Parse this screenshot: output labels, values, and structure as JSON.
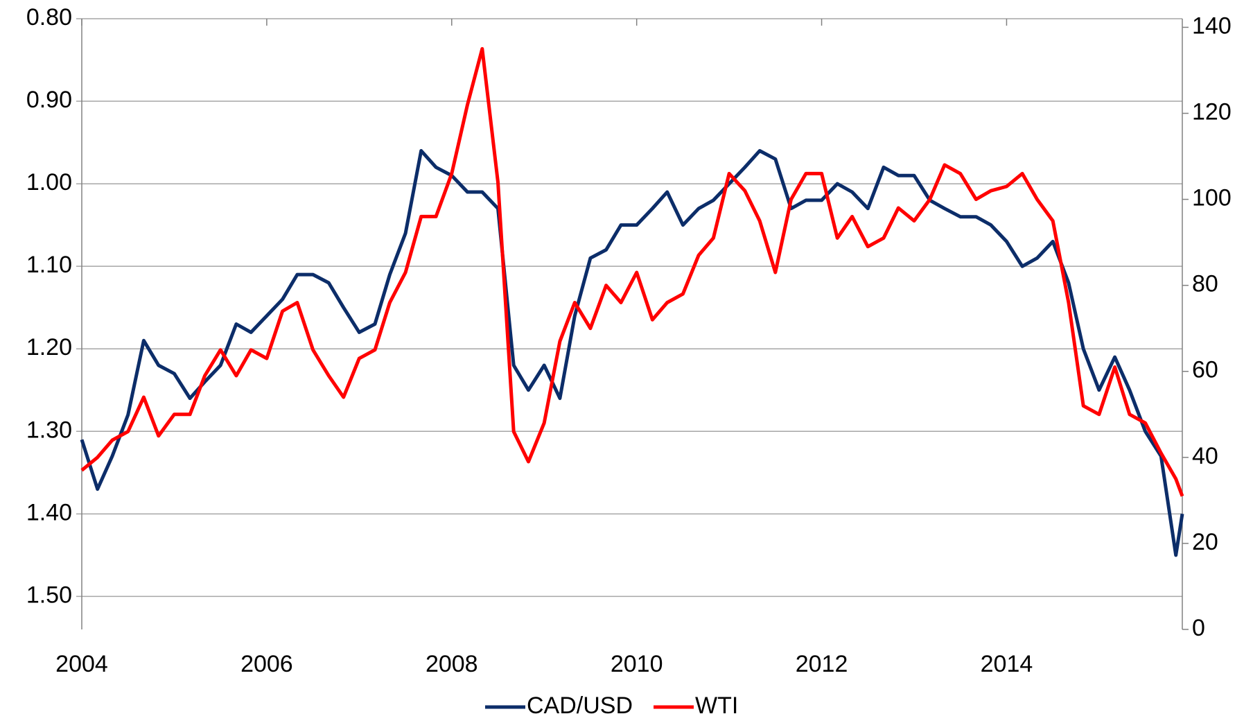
{
  "chart_data": {
    "type": "line",
    "x": [
      2004,
      2004.17,
      2004.33,
      2004.5,
      2004.67,
      2004.83,
      2005,
      2005.17,
      2005.33,
      2005.5,
      2005.67,
      2005.83,
      2006,
      2006.17,
      2006.33,
      2006.5,
      2006.67,
      2006.83,
      2007,
      2007.17,
      2007.33,
      2007.5,
      2007.67,
      2007.83,
      2008,
      2008.17,
      2008.33,
      2008.5,
      2008.67,
      2008.83,
      2009,
      2009.17,
      2009.33,
      2009.5,
      2009.67,
      2009.83,
      2010,
      2010.17,
      2010.33,
      2010.5,
      2010.67,
      2010.83,
      2011,
      2011.17,
      2011.33,
      2011.5,
      2011.67,
      2011.83,
      2012,
      2012.17,
      2012.33,
      2012.5,
      2012.67,
      2012.83,
      2013,
      2013.17,
      2013.33,
      2013.5,
      2013.67,
      2013.83,
      2014,
      2014.17,
      2014.33,
      2014.5,
      2014.67,
      2014.83,
      2015,
      2015.17,
      2015.33,
      2015.5,
      2015.67,
      2015.83,
      2015.9
    ],
    "series": [
      {
        "name": "CAD/USD",
        "color": "#0c2d69",
        "values": [
          1.31,
          1.37,
          1.33,
          1.28,
          1.19,
          1.22,
          1.23,
          1.26,
          1.24,
          1.22,
          1.17,
          1.18,
          1.16,
          1.14,
          1.11,
          1.11,
          1.12,
          1.15,
          1.18,
          1.17,
          1.11,
          1.06,
          0.96,
          0.98,
          0.99,
          1.01,
          1.01,
          1.03,
          1.22,
          1.25,
          1.22,
          1.26,
          1.16,
          1.09,
          1.08,
          1.05,
          1.05,
          1.03,
          1.01,
          1.05,
          1.03,
          1.02,
          1.0,
          0.98,
          0.96,
          0.97,
          1.03,
          1.02,
          1.02,
          1.0,
          1.01,
          1.03,
          0.98,
          0.99,
          0.99,
          1.02,
          1.03,
          1.04,
          1.04,
          1.05,
          1.07,
          1.1,
          1.09,
          1.07,
          1.12,
          1.2,
          1.25,
          1.21,
          1.25,
          1.3,
          1.33,
          1.45,
          1.4
        ]
      },
      {
        "name": "WTI",
        "color": "#ff0000",
        "axis": "y2",
        "values": [
          37,
          40,
          44,
          46,
          54,
          45,
          50,
          50,
          59,
          65,
          59,
          65,
          63,
          74,
          76,
          65,
          59,
          54,
          63,
          65,
          76,
          83,
          96,
          96,
          106,
          122,
          135,
          104,
          46,
          39,
          48,
          67,
          76,
          70,
          80,
          76,
          83,
          72,
          76,
          78,
          87,
          91,
          106,
          102,
          95,
          83,
          100,
          106,
          106,
          91,
          96,
          89,
          91,
          98,
          95,
          100,
          108,
          106,
          100,
          102,
          103,
          106,
          100,
          95,
          76,
          52,
          50,
          61,
          50,
          48,
          41,
          35,
          31
        ]
      }
    ],
    "xlim": [
      2004,
      2015.9
    ],
    "xticks": [
      2004,
      2006,
      2008,
      2010,
      2012,
      2014
    ],
    "ylim": [
      1.54,
      0.8
    ],
    "yticks": [
      {
        "value": 0.8,
        "label": "0.80"
      },
      {
        "value": 0.9,
        "label": "0.90"
      },
      {
        "value": 1.0,
        "label": "1.00"
      },
      {
        "value": 1.1,
        "label": "1.10"
      },
      {
        "value": 1.2,
        "label": "1.20"
      },
      {
        "value": 1.3,
        "label": "1.30"
      },
      {
        "value": 1.4,
        "label": "1.40"
      },
      {
        "value": 1.5,
        "label": "1.50"
      }
    ],
    "y2lim": [
      0,
      142
    ],
    "y2ticks": [
      0,
      20,
      40,
      60,
      80,
      100,
      120,
      140
    ],
    "grid": true,
    "legend": "bottom"
  }
}
